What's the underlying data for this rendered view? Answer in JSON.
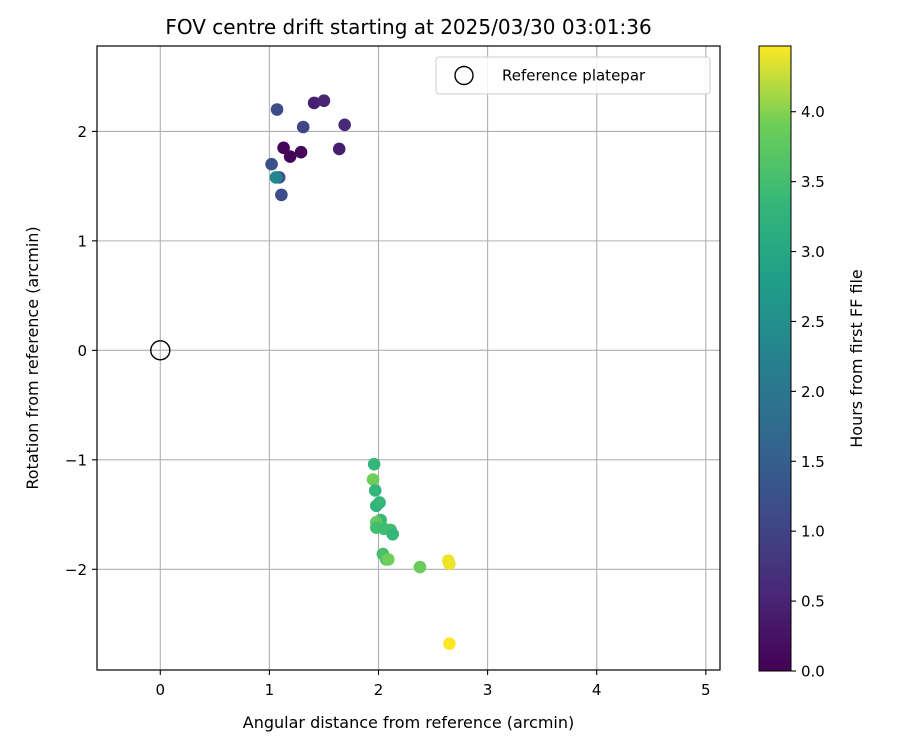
{
  "chart_data": {
    "type": "scatter",
    "title": "FOV centre drift starting at 2025/03/30 03:01:36",
    "xlabel": "Angular distance from reference (arcmin)",
    "ylabel": "Rotation from reference (arcmin)",
    "xlim": [
      -0.58,
      5.13
    ],
    "ylim": [
      -2.92,
      2.78
    ],
    "xticks": [
      0,
      1,
      2,
      3,
      4,
      5
    ],
    "yticks": [
      -2,
      -1,
      0,
      1,
      2
    ],
    "xtick_labels": [
      "0",
      "1",
      "2",
      "3",
      "4",
      "5"
    ],
    "ytick_labels": [
      "−2",
      "−1",
      "0",
      "1",
      "2"
    ],
    "grid": true,
    "legend": {
      "label": "Reference platepar",
      "placement": "top-right"
    },
    "reference_point": {
      "x": 0,
      "y": 0
    },
    "colorbar": {
      "label": "Hours from first FF file",
      "colormap": "viridis",
      "range": [
        0,
        4.47
      ],
      "ticks": [
        0.0,
        0.5,
        1.0,
        1.5,
        2.0,
        2.5,
        3.0,
        3.5,
        4.0
      ],
      "tick_labels": [
        "0.0",
        "0.5",
        "1.0",
        "1.5",
        "2.0",
        "2.5",
        "3.0",
        "3.5",
        "4.0"
      ]
    },
    "points": [
      {
        "x": 1.13,
        "y": 1.85,
        "c": 0.05
      },
      {
        "x": 1.19,
        "y": 1.77,
        "c": 0.05
      },
      {
        "x": 1.29,
        "y": 1.81,
        "c": 0.1
      },
      {
        "x": 1.41,
        "y": 2.26,
        "c": 0.45
      },
      {
        "x": 1.5,
        "y": 2.28,
        "c": 0.55
      },
      {
        "x": 1.69,
        "y": 2.06,
        "c": 0.6
      },
      {
        "x": 1.64,
        "y": 1.84,
        "c": 0.4
      },
      {
        "x": 1.31,
        "y": 2.04,
        "c": 1.05
      },
      {
        "x": 1.07,
        "y": 2.2,
        "c": 1.15
      },
      {
        "x": 1.02,
        "y": 1.7,
        "c": 1.25
      },
      {
        "x": 1.09,
        "y": 1.58,
        "c": 1.35
      },
      {
        "x": 1.11,
        "y": 1.42,
        "c": 1.2
      },
      {
        "x": 1.06,
        "y": 1.58,
        "c": 2.3
      },
      {
        "x": 1.96,
        "y": -1.04,
        "c": 3.3
      },
      {
        "x": 1.95,
        "y": -1.18,
        "c": 3.9
      },
      {
        "x": 1.97,
        "y": -1.28,
        "c": 3.3
      },
      {
        "x": 1.98,
        "y": -1.42,
        "c": 3.25
      },
      {
        "x": 2.01,
        "y": -1.39,
        "c": 3.35
      },
      {
        "x": 2.02,
        "y": -1.55,
        "c": 3.4
      },
      {
        "x": 1.98,
        "y": -1.57,
        "c": 3.8
      },
      {
        "x": 1.98,
        "y": -1.62,
        "c": 3.5
      },
      {
        "x": 2.05,
        "y": -1.63,
        "c": 3.45
      },
      {
        "x": 2.11,
        "y": -1.64,
        "c": 3.5
      },
      {
        "x": 2.13,
        "y": -1.68,
        "c": 3.35
      },
      {
        "x": 2.04,
        "y": -1.86,
        "c": 3.55
      },
      {
        "x": 2.07,
        "y": -1.91,
        "c": 3.65
      },
      {
        "x": 2.09,
        "y": -1.91,
        "c": 3.9
      },
      {
        "x": 2.38,
        "y": -1.98,
        "c": 3.85
      },
      {
        "x": 2.64,
        "y": -1.92,
        "c": 4.4
      },
      {
        "x": 2.65,
        "y": -1.95,
        "c": 4.4
      },
      {
        "x": 2.65,
        "y": -2.68,
        "c": 4.47
      }
    ]
  }
}
